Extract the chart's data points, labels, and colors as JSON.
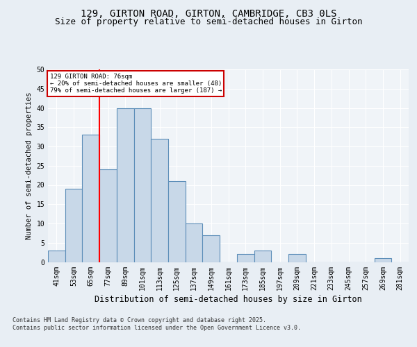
{
  "title_line1": "129, GIRTON ROAD, GIRTON, CAMBRIDGE, CB3 0LS",
  "title_line2": "Size of property relative to semi-detached houses in Girton",
  "xlabel": "Distribution of semi-detached houses by size in Girton",
  "ylabel": "Number of semi-detached properties",
  "categories": [
    "41sqm",
    "53sqm",
    "65sqm",
    "77sqm",
    "89sqm",
    "101sqm",
    "113sqm",
    "125sqm",
    "137sqm",
    "149sqm",
    "161sqm",
    "173sqm",
    "185sqm",
    "197sqm",
    "209sqm",
    "221sqm",
    "233sqm",
    "245sqm",
    "257sqm",
    "269sqm",
    "281sqm"
  ],
  "values": [
    3,
    19,
    33,
    24,
    40,
    40,
    32,
    21,
    10,
    7,
    0,
    2,
    3,
    0,
    2,
    0,
    0,
    0,
    0,
    1,
    0
  ],
  "bar_color": "#c8d8e8",
  "bar_edge_color": "#5b8db8",
  "vline_x_index": 2,
  "ylim": [
    0,
    50
  ],
  "yticks": [
    0,
    5,
    10,
    15,
    20,
    25,
    30,
    35,
    40,
    45,
    50
  ],
  "bg_color": "#e8eef4",
  "plot_bg_color": "#f0f4f8",
  "footer": "Contains HM Land Registry data © Crown copyright and database right 2025.\nContains public sector information licensed under the Open Government Licence v3.0.",
  "annotation_line1": "129 GIRTON ROAD: 76sqm",
  "annotation_line2": "← 20% of semi-detached houses are smaller (48)",
  "annotation_line3": "79% of semi-detached houses are larger (187) →",
  "annotation_box_color": "#ffffff",
  "annotation_box_edge": "#cc0000",
  "annotation_fontsize": 6.5,
  "title_fontsize1": 10,
  "title_fontsize2": 9,
  "ylabel_fontsize": 7.5,
  "xlabel_fontsize": 8.5,
  "tick_fontsize": 7,
  "footer_fontsize": 6
}
